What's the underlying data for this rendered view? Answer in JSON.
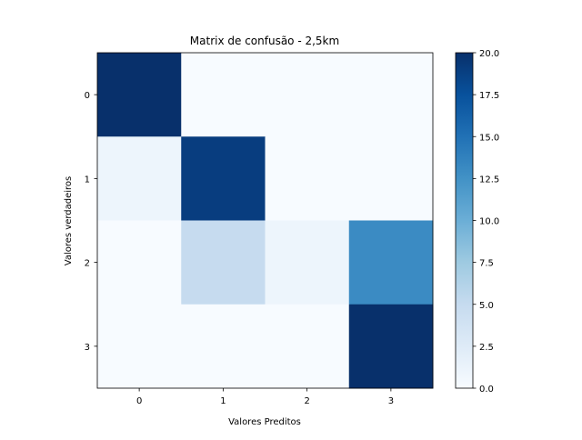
{
  "chart_data": {
    "type": "heatmap",
    "title": "Matrix de confusão - 2,5km",
    "xlabel": "Valores Preditos",
    "ylabel": "Valores verdadeiros",
    "x_categories": [
      "0",
      "1",
      "2",
      "3"
    ],
    "y_categories": [
      "0",
      "1",
      "2",
      "3"
    ],
    "matrix": [
      [
        20,
        0,
        0,
        0
      ],
      [
        1,
        19,
        0,
        0
      ],
      [
        0,
        5,
        1,
        13
      ],
      [
        0,
        0,
        0,
        20
      ]
    ],
    "colormap": "Blues",
    "colorbar": {
      "min": 0,
      "max": 20,
      "ticks": [
        0.0,
        2.5,
        5.0,
        7.5,
        10.0,
        12.5,
        15.0,
        17.5,
        20.0
      ],
      "tick_labels": [
        "0.0",
        "2.5",
        "5.0",
        "7.5",
        "10.0",
        "12.5",
        "15.0",
        "17.5",
        "20.0"
      ]
    },
    "grid": false
  }
}
